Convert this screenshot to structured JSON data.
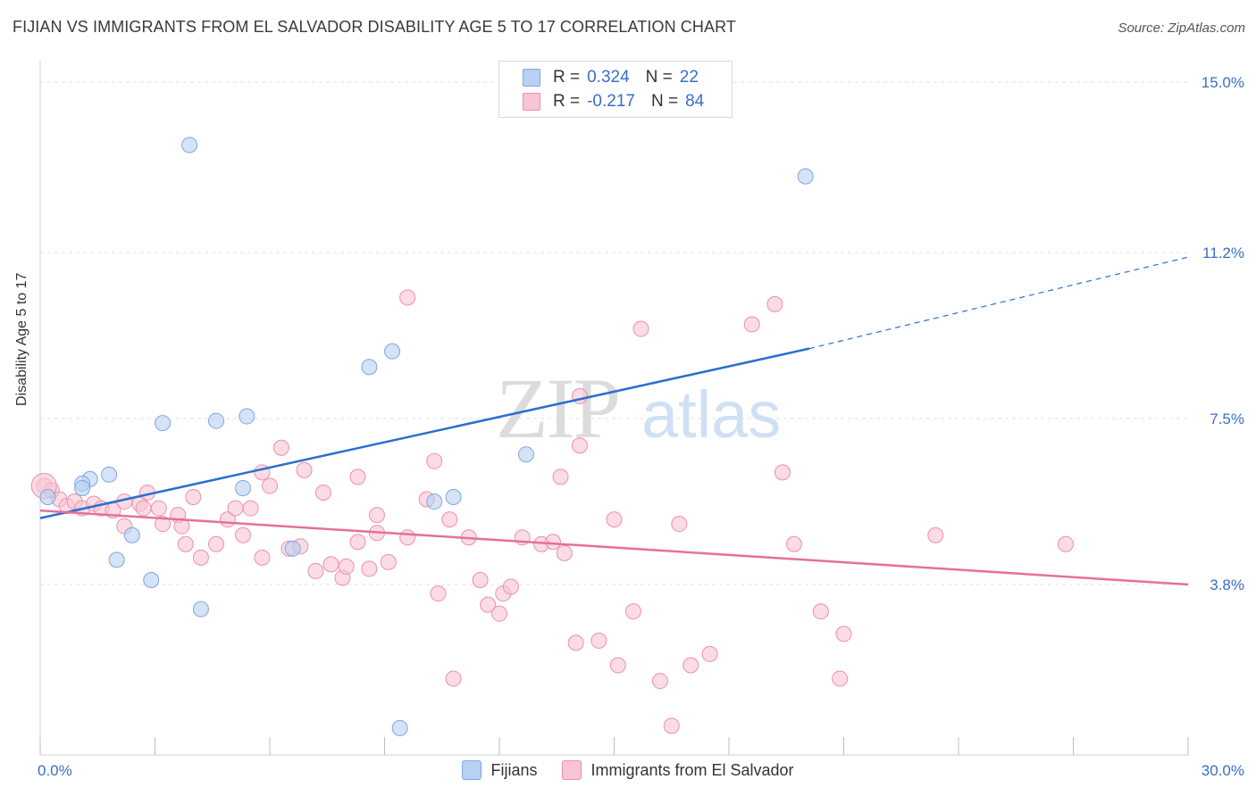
{
  "title": "FIJIAN VS IMMIGRANTS FROM EL SALVADOR DISABILITY AGE 5 TO 17 CORRELATION CHART",
  "source": "Source: ZipAtlas.com",
  "watermark": {
    "zip": "ZIP",
    "atlas": "atlas"
  },
  "legend_top": {
    "rows": [
      {
        "r_label": "R =",
        "r_value": "0.324",
        "n_label": "N =",
        "n_value": "22"
      },
      {
        "r_label": "R =",
        "r_value": "-0.217",
        "n_label": "N =",
        "n_value": "84"
      }
    ]
  },
  "legend_bottom": {
    "fijians": "Fijians",
    "salvador": "Immigrants from El Salvador"
  },
  "colors": {
    "blue_fill": "#b8d1f3",
    "blue_stroke": "#7ea6de",
    "blue_line": "#2a6fcf",
    "pink_fill": "#f9c4d4",
    "pink_stroke": "#ec8fad",
    "pink_line": "#e5709a",
    "tick_label": "#3a6fc4",
    "grid": "#e2e2e2"
  },
  "chart_data": {
    "type": "scatter",
    "title": "FIJIAN VS IMMIGRANTS FROM EL SALVADOR DISABILITY AGE 5 TO 17 CORRELATION CHART",
    "xlabel": "",
    "ylabel": "Disability Age 5 to 17",
    "xlim": [
      0,
      30
    ],
    "ylim": [
      0,
      15.4
    ],
    "x_tick_labels": [
      {
        "value": 0,
        "label": "0.0%"
      },
      {
        "value": 30,
        "label": "30.0%"
      }
    ],
    "y_tick_labels": [
      {
        "value": 3.8,
        "label": "3.8%"
      },
      {
        "value": 7.5,
        "label": "7.5%"
      },
      {
        "value": 11.2,
        "label": "11.2%"
      },
      {
        "value": 15.0,
        "label": "15.0%"
      }
    ],
    "grid": true,
    "legend_position": "top-center",
    "series": [
      {
        "name": "Fijians",
        "points": [
          [
            0.2,
            5.75
          ],
          [
            1.3,
            6.15
          ],
          [
            1.1,
            6.05
          ],
          [
            1.1,
            5.95
          ],
          [
            1.8,
            6.25
          ],
          [
            2.4,
            4.9
          ],
          [
            2.0,
            4.35
          ],
          [
            2.9,
            3.9
          ],
          [
            3.2,
            7.4
          ],
          [
            3.9,
            13.6
          ],
          [
            4.2,
            3.25
          ],
          [
            4.6,
            7.45
          ],
          [
            5.3,
            5.95
          ],
          [
            5.4,
            7.55
          ],
          [
            6.6,
            4.6
          ],
          [
            8.6,
            8.65
          ],
          [
            9.2,
            9.0
          ],
          [
            9.4,
            0.6
          ],
          [
            10.3,
            5.65
          ],
          [
            10.8,
            5.75
          ],
          [
            12.7,
            6.7
          ],
          [
            20.0,
            12.9
          ]
        ],
        "trend": {
          "x": [
            0,
            20.1
          ],
          "y": [
            5.28,
            9.06
          ]
        },
        "trend_extension": {
          "x": [
            20.1,
            30
          ],
          "y": [
            9.06,
            11.1
          ]
        }
      },
      {
        "name": "Immigrants from El Salvador",
        "points": [
          [
            0.1,
            6.0
          ],
          [
            0.3,
            5.9
          ],
          [
            0.5,
            5.7
          ],
          [
            0.7,
            5.55
          ],
          [
            0.9,
            5.65
          ],
          [
            1.1,
            5.5
          ],
          [
            1.4,
            5.6
          ],
          [
            1.6,
            5.5
          ],
          [
            1.9,
            5.45
          ],
          [
            2.2,
            5.65
          ],
          [
            2.2,
            5.1
          ],
          [
            2.6,
            5.6
          ],
          [
            2.7,
            5.5
          ],
          [
            2.8,
            5.85
          ],
          [
            3.1,
            5.5
          ],
          [
            3.2,
            5.15
          ],
          [
            3.6,
            5.35
          ],
          [
            3.7,
            5.1
          ],
          [
            3.8,
            4.7
          ],
          [
            4.0,
            5.75
          ],
          [
            4.2,
            4.4
          ],
          [
            4.6,
            4.7
          ],
          [
            4.9,
            5.25
          ],
          [
            5.1,
            5.5
          ],
          [
            5.3,
            4.9
          ],
          [
            5.5,
            5.5
          ],
          [
            5.8,
            4.4
          ],
          [
            5.8,
            6.3
          ],
          [
            6.0,
            6.0
          ],
          [
            6.3,
            6.85
          ],
          [
            6.5,
            4.6
          ],
          [
            6.8,
            4.65
          ],
          [
            6.9,
            6.35
          ],
          [
            7.2,
            4.1
          ],
          [
            7.4,
            5.85
          ],
          [
            7.6,
            4.25
          ],
          [
            7.9,
            3.95
          ],
          [
            8.0,
            4.2
          ],
          [
            8.3,
            4.75
          ],
          [
            8.3,
            6.2
          ],
          [
            8.6,
            4.15
          ],
          [
            8.8,
            4.95
          ],
          [
            8.8,
            5.35
          ],
          [
            9.1,
            4.3
          ],
          [
            9.6,
            4.85
          ],
          [
            9.6,
            10.2
          ],
          [
            10.1,
            5.7
          ],
          [
            10.3,
            6.55
          ],
          [
            10.4,
            3.6
          ],
          [
            10.7,
            5.25
          ],
          [
            10.8,
            1.7
          ],
          [
            11.2,
            4.85
          ],
          [
            11.5,
            3.9
          ],
          [
            11.7,
            3.35
          ],
          [
            12.0,
            3.15
          ],
          [
            12.1,
            3.6
          ],
          [
            12.3,
            3.75
          ],
          [
            12.6,
            4.85
          ],
          [
            13.1,
            4.7
          ],
          [
            13.4,
            4.75
          ],
          [
            13.6,
            6.2
          ],
          [
            13.7,
            4.5
          ],
          [
            14.0,
            2.5
          ],
          [
            14.1,
            6.9
          ],
          [
            14.1,
            8.0
          ],
          [
            14.6,
            2.55
          ],
          [
            15.0,
            5.25
          ],
          [
            15.1,
            2.0
          ],
          [
            15.5,
            3.2
          ],
          [
            15.7,
            9.5
          ],
          [
            16.2,
            1.65
          ],
          [
            16.7,
            5.15
          ],
          [
            17.0,
            2.0
          ],
          [
            17.5,
            2.25
          ],
          [
            18.6,
            9.6
          ],
          [
            19.2,
            10.05
          ],
          [
            19.4,
            6.3
          ],
          [
            19.7,
            4.7
          ],
          [
            20.4,
            3.2
          ],
          [
            20.9,
            1.7
          ],
          [
            21.0,
            2.7
          ],
          [
            23.4,
            4.9
          ],
          [
            26.8,
            4.7
          ],
          [
            16.5,
            0.65
          ]
        ],
        "trend": {
          "x": [
            0,
            30
          ],
          "y": [
            5.45,
            3.8
          ]
        }
      }
    ]
  }
}
